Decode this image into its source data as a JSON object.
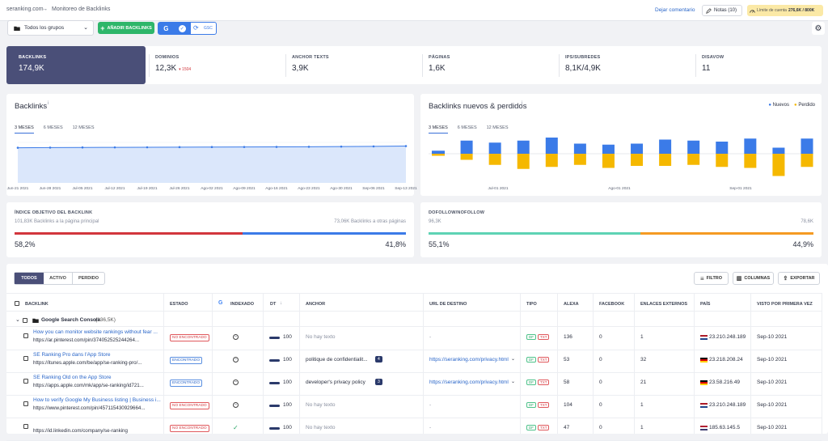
{
  "header": {
    "breadcrumb_root": "seranking.com",
    "breadcrumb_sep": "→",
    "breadcrumb_page": "Monitoreo de Backlinks",
    "feedback": "Dejar comentario",
    "notes": "Notas (10)",
    "limit_label": "Límite de cuenta",
    "limit_value": "276,6K / 800K"
  },
  "toolbar": {
    "group_select": "Todos los grupos",
    "add_label": "AÑADIR BACKLINKS",
    "gsc_label": "GSC"
  },
  "stats": [
    {
      "label": "BACKLINKS",
      "value": "174,9K",
      "delta": ""
    },
    {
      "label": "DOMINIOS",
      "value": "12,3K",
      "delta": "▾ 1504"
    },
    {
      "label": "ANCHOR TEXTS",
      "value": "3,9K",
      "delta": ""
    },
    {
      "label": "PÁGINAS",
      "value": "1,6K",
      "delta": ""
    },
    {
      "label": "IPS/SUBREDES",
      "value": "8,1K/4,9K",
      "delta": ""
    },
    {
      "label": "DISAVOW",
      "value": "11",
      "delta": ""
    }
  ],
  "backlinks_chart": {
    "title": "Backlinks",
    "tabs": [
      "3 MESES",
      "6 MESES",
      "12 MESES"
    ],
    "x_labels": [
      "Jun-21 2021",
      "Jun-28 2021",
      "Jul-05 2021",
      "Jul-12 2021",
      "Jul-19 2021",
      "Jul-26 2021",
      "Ago-02 2021",
      "Ago-09 2021",
      "Ago-16 2021",
      "Ago-23 2021",
      "Ago-30 2021",
      "Sep-06 2021",
      "Sep-13 2021"
    ]
  },
  "newlost_chart": {
    "title": "Backlinks nuevos & perdidos",
    "legend_new": "Nuevos",
    "legend_lost": "Perdido",
    "color_new": "#3b7be8",
    "color_lost": "#f5b800",
    "tabs": [
      "3 MESES",
      "6 MESES",
      "12 MESES"
    ],
    "x_labels": [
      "Jul-01 2021",
      "Ago-01 2021",
      "Sep-01 2021"
    ]
  },
  "chart_data": [
    {
      "type": "area",
      "title": "Backlinks",
      "x": [
        "Jun-21 2021",
        "Jun-28 2021",
        "Jul-05 2021",
        "Jul-12 2021",
        "Jul-19 2021",
        "Jul-26 2021",
        "Ago-02 2021",
        "Ago-09 2021",
        "Ago-16 2021",
        "Ago-23 2021",
        "Ago-30 2021",
        "Sep-06 2021",
        "Sep-13 2021"
      ],
      "values": [
        0.955,
        0.96,
        0.963,
        0.965,
        0.968,
        0.972,
        0.974,
        0.976,
        0.978,
        0.982,
        0.986,
        0.992,
        1.0
      ],
      "points_per_label": 1,
      "ylim": [
        0,
        1.1
      ]
    },
    {
      "type": "bar",
      "title": "Backlinks nuevos & perdidos",
      "series": [
        {
          "name": "Nuevos",
          "values": [
            3,
            13,
            11,
            13,
            16,
            10,
            9,
            10,
            14,
            13,
            12,
            15,
            6,
            15
          ]
        },
        {
          "name": "Perdido",
          "values": [
            -2,
            -6,
            -11,
            -15,
            -13,
            -11,
            -14,
            -12,
            -12,
            -11,
            -13,
            -14,
            -22,
            -13
          ]
        }
      ],
      "ylim": [
        -25,
        20
      ]
    }
  ],
  "anchor_ratio": {
    "title": "ÍNDICE OBJETIVO DEL BACKLINK",
    "left_label": "101,83K Backlinks a la página principal",
    "right_label": "73,06K Backlinks a otras páginas",
    "left_pct": "58,2%",
    "right_pct": "41,8%",
    "left_fraction": 0.582,
    "left_color": "#d2363d",
    "right_color": "#3b7be8"
  },
  "follow_ratio": {
    "title": "DOFOLLOW/NOFOLLOW",
    "left_label": "96,3K",
    "right_label": "78,6K",
    "left_pct": "55,1%",
    "right_pct": "44,9%",
    "left_fraction": 0.551,
    "left_color": "#5ed3b4",
    "right_color": "#f59a23"
  },
  "table": {
    "filter_tabs": [
      "TODOS",
      "ACTIVO",
      "PERDIDO"
    ],
    "filter_btn": "FILTRO",
    "columns_btn": "COLUMNAS",
    "export_btn": "EXPORTAR",
    "headers": [
      "BACKLINK",
      "ESTADO",
      "INDEXADO",
      "DT",
      "ANCHOR",
      "URL DE DESTINO",
      "TIPO",
      "ALEXA",
      "FACEBOOK",
      "ENLACES EXTERNOS",
      "PAÍS",
      "VISTO POR PRIMERA VEZ"
    ],
    "group_label": "Google Search Console",
    "group_count": "(136,5K)",
    "rows": [
      {
        "title": "How you can monitor website rankings without fear ...",
        "url": "https://ar.pinterest.com/pin/374052525244264...",
        "status": "NO ENCONTRADO",
        "status_kind": "red",
        "indexed": "neutral",
        "dt": "100",
        "anchor": "No hay texto",
        "anchor_muted": true,
        "anchor_count": "",
        "dest": "-",
        "dest_link": false,
        "alexa": "136",
        "facebook": "0",
        "ext": "1",
        "flag": "nl",
        "ip": "23.210.248.189",
        "seen": "Sep-10 2021"
      },
      {
        "title": "SE Ranking Pro dans l'App Store",
        "url": "https://itunes.apple.com/be/app/se-ranking-pro/...",
        "status": "ENCONTRADO",
        "status_kind": "blue",
        "indexed": "neutral",
        "dt": "100",
        "anchor": "politique de confidentialit...",
        "anchor_muted": false,
        "anchor_count": "4",
        "dest": "https://seranking.com/privacy.html",
        "dest_link": true,
        "alexa": "53",
        "facebook": "0",
        "ext": "32",
        "flag": "de",
        "ip": "23.218.208.24",
        "seen": "Sep-10 2021"
      },
      {
        "title": "SE Ranking Old on the App Store",
        "url": "https://apps.apple.com/mk/app/se-ranking/id721...",
        "status": "ENCONTRADO",
        "status_kind": "blue",
        "indexed": "neutral",
        "dt": "100",
        "anchor": "developer's privacy policy",
        "anchor_muted": false,
        "anchor_count": "3",
        "dest": "https://seranking.com/privacy.html",
        "dest_link": true,
        "alexa": "58",
        "facebook": "0",
        "ext": "21",
        "flag": "de",
        "ip": "23.58.216.49",
        "seen": "Sep-10 2021"
      },
      {
        "title": "How to verify Google My Business listing | Business i...",
        "url": "https://www.pinterest.com/pin/457115430929664...",
        "status": "NO ENCONTRADO",
        "status_kind": "red",
        "indexed": "neutral",
        "dt": "100",
        "anchor": "No hay texto",
        "anchor_muted": true,
        "anchor_count": "",
        "dest": "-",
        "dest_link": false,
        "alexa": "104",
        "facebook": "0",
        "ext": "1",
        "flag": "nl",
        "ip": "23.210.248.189",
        "seen": "Sep-10 2021"
      },
      {
        "title": "",
        "url": "https://id.linkedin.com/company/se-ranking",
        "status": "NO ENCONTRADO",
        "status_kind": "red",
        "indexed": "ok",
        "dt": "100",
        "anchor": "No hay texto",
        "anchor_muted": true,
        "anchor_count": "",
        "dest": "-",
        "dest_link": false,
        "alexa": "47",
        "facebook": "0",
        "ext": "1",
        "flag": "us",
        "ip": "185.63.145.5",
        "seen": "Sep-10 2021"
      }
    ]
  }
}
